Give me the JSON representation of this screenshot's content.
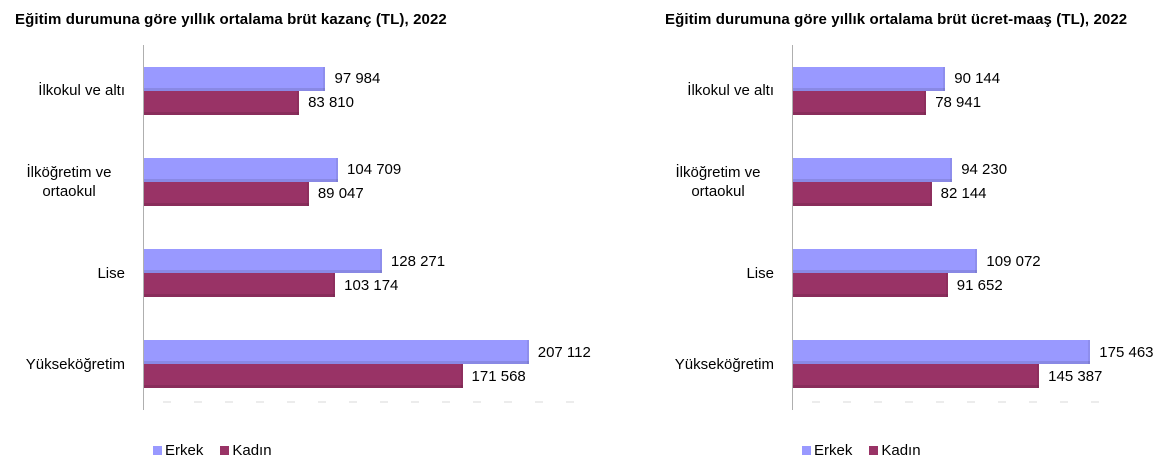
{
  "chart_data": [
    {
      "type": "bar",
      "orientation": "horizontal",
      "title": "Eğitim durumuna göre yıllık ortalama brüt kazanç (TL), 2022",
      "categories": [
        "İlkokul ve altı",
        "İlköğretim ve ortaokul",
        "Lise",
        "Yükseköğretim"
      ],
      "series": [
        {
          "name": "Erkek",
          "color": "#9999FF",
          "values": [
            97984,
            104709,
            128271,
            207112
          ],
          "labels": [
            "97 984",
            "104 709",
            "128 271",
            "207 112"
          ]
        },
        {
          "name": "Kadın",
          "color": "#993366",
          "values": [
            83810,
            89047,
            103174,
            171568
          ],
          "labels": [
            "83 810",
            "89 047",
            "103 174",
            "171 568"
          ]
        }
      ],
      "xlim": [
        0,
        240000
      ],
      "grid": false,
      "value_labels_shown": true,
      "legend_position": "bottom-left"
    },
    {
      "type": "bar",
      "orientation": "horizontal",
      "title": "Eğitim durumuna göre yıllık ortalama brüt ücret-maaş (TL), 2022",
      "categories": [
        "İlkokul ve altı",
        "İlköğretim ve ortaokul",
        "Lise",
        "Yükseköğretim"
      ],
      "series": [
        {
          "name": "Erkek",
          "color": "#9999FF",
          "values": [
            90144,
            94230,
            109072,
            175463
          ],
          "labels": [
            "90 144",
            "94 230",
            "109 072",
            "175 463"
          ]
        },
        {
          "name": "Kadın",
          "color": "#993366",
          "values": [
            78941,
            82144,
            91652,
            145387
          ],
          "labels": [
            "78 941",
            "82 144",
            "91 652",
            "145 387"
          ]
        }
      ],
      "xlim": [
        0,
        200000
      ],
      "grid": false,
      "value_labels_shown": true,
      "legend_position": "bottom-left"
    }
  ],
  "colors": {
    "erkek_bar": "#9999FF",
    "kadin_bar": "#993366",
    "axis_line": "#AFAFAF",
    "text": "#000000",
    "background": "#FFFFFF"
  }
}
